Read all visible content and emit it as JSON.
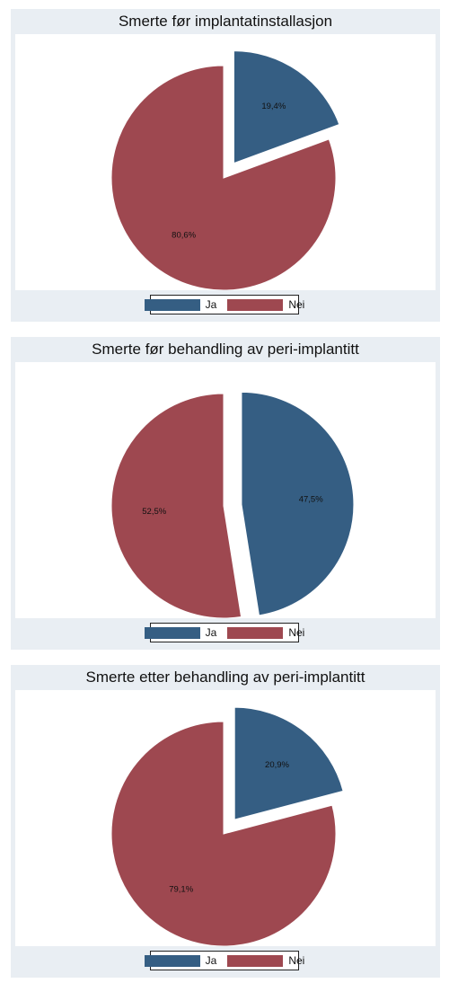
{
  "colors": {
    "ja": "#355e83",
    "nei": "#9e4850"
  },
  "legend": [
    {
      "label": "Ja",
      "color": "#355e83"
    },
    {
      "label": "Nei",
      "color": "#9e4850"
    }
  ],
  "chart_data": [
    {
      "type": "pie",
      "title": "Smerte før implantatinstallasjon",
      "slices": [
        {
          "name": "Ja",
          "value": 19.4,
          "label": "19,4%",
          "color": "#355e83",
          "exploded": true
        },
        {
          "name": "Nei",
          "value": 80.6,
          "label": "80,6%",
          "color": "#9e4850",
          "exploded": false
        }
      ],
      "legend_placement": "bottom"
    },
    {
      "type": "pie",
      "title": "Smerte før behandling av peri-implantitt",
      "slices": [
        {
          "name": "Ja",
          "value": 47.5,
          "label": "47,5%",
          "color": "#355e83",
          "exploded": true
        },
        {
          "name": "Nei",
          "value": 52.5,
          "label": "52,5%",
          "color": "#9e4850",
          "exploded": false
        }
      ],
      "legend_placement": "bottom"
    },
    {
      "type": "pie",
      "title": "Smerte etter behandling av peri-implantitt",
      "slices": [
        {
          "name": "Ja",
          "value": 20.9,
          "label": "20,9%",
          "color": "#355e83",
          "exploded": true
        },
        {
          "name": "Nei",
          "value": 79.1,
          "label": "79,1%",
          "color": "#9e4850",
          "exploded": false
        }
      ],
      "legend_placement": "bottom"
    }
  ]
}
